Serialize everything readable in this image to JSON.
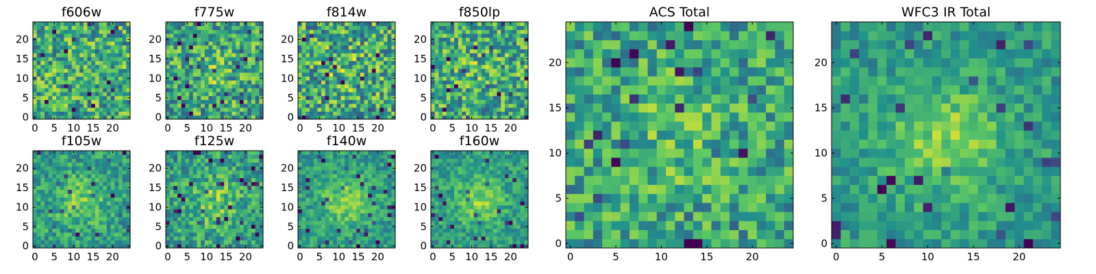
{
  "chart_data": [
    {
      "id": "p1",
      "type": "heatmap",
      "title": "f606w",
      "grid_size": 25,
      "xlim": [
        0,
        25
      ],
      "ylim": [
        0,
        25
      ],
      "xticks": [
        0,
        5,
        10,
        15,
        20
      ],
      "yticks": [
        0,
        5,
        10,
        15,
        20
      ],
      "blob": 0.0,
      "seed": 11,
      "noise": 0.55
    },
    {
      "id": "p2",
      "type": "heatmap",
      "title": "f775w",
      "grid_size": 25,
      "xlim": [
        0,
        25
      ],
      "ylim": [
        0,
        25
      ],
      "xticks": [
        0,
        5,
        10,
        15,
        20
      ],
      "yticks": [
        0,
        5,
        10,
        15,
        20
      ],
      "blob": 0.25,
      "seed": 23,
      "noise": 0.55
    },
    {
      "id": "p3",
      "type": "heatmap",
      "title": "f814w",
      "grid_size": 25,
      "xlim": [
        0,
        25
      ],
      "ylim": [
        0,
        25
      ],
      "xticks": [
        0,
        5,
        10,
        15,
        20
      ],
      "yticks": [
        0,
        5,
        10,
        15,
        20
      ],
      "blob": 0.2,
      "seed": 37,
      "noise": 0.6
    },
    {
      "id": "p4",
      "type": "heatmap",
      "title": "f850lp",
      "grid_size": 25,
      "xlim": [
        0,
        25
      ],
      "ylim": [
        0,
        25
      ],
      "xticks": [
        0,
        5,
        10,
        15,
        20
      ],
      "yticks": [
        0,
        5,
        10,
        15,
        20
      ],
      "blob": 0.15,
      "seed": 41,
      "noise": 0.55
    },
    {
      "id": "p5",
      "type": "heatmap",
      "title": "f105w",
      "grid_size": 25,
      "xlim": [
        0,
        25
      ],
      "ylim": [
        0,
        25
      ],
      "xticks": [
        0,
        5,
        10,
        15,
        20
      ],
      "yticks": [
        0,
        5,
        10,
        15,
        20
      ],
      "blob": 0.55,
      "seed": 53,
      "noise": 0.35
    },
    {
      "id": "p6",
      "type": "heatmap",
      "title": "f125w",
      "grid_size": 25,
      "xlim": [
        0,
        25
      ],
      "ylim": [
        0,
        25
      ],
      "xticks": [
        0,
        5,
        10,
        15,
        20
      ],
      "yticks": [
        0,
        5,
        10,
        15,
        20
      ],
      "blob": 0.5,
      "seed": 67,
      "noise": 0.4
    },
    {
      "id": "p7",
      "type": "heatmap",
      "title": "f140w",
      "grid_size": 25,
      "xlim": [
        0,
        25
      ],
      "ylim": [
        0,
        25
      ],
      "xticks": [
        0,
        5,
        10,
        15,
        20
      ],
      "yticks": [
        0,
        5,
        10,
        15,
        20
      ],
      "blob": 0.65,
      "seed": 71,
      "noise": 0.3
    },
    {
      "id": "p8",
      "type": "heatmap",
      "title": "f160w",
      "grid_size": 25,
      "xlim": [
        0,
        25
      ],
      "ylim": [
        0,
        25
      ],
      "xticks": [
        0,
        5,
        10,
        15,
        20
      ],
      "yticks": [
        0,
        5,
        10,
        15,
        20
      ],
      "blob": 0.65,
      "seed": 83,
      "noise": 0.3
    },
    {
      "id": "p9",
      "type": "heatmap",
      "title": "ACS Total",
      "grid_size": 25,
      "xlim": [
        0,
        25
      ],
      "ylim": [
        0,
        25
      ],
      "xticks": [
        0,
        5,
        10,
        15,
        20
      ],
      "yticks": [
        0,
        5,
        10,
        15,
        20
      ],
      "blob": 0.3,
      "seed": 97,
      "noise": 0.45
    },
    {
      "id": "p10",
      "type": "heatmap",
      "title": "WFC3 IR Total",
      "grid_size": 25,
      "xlim": [
        0,
        25
      ],
      "ylim": [
        0,
        25
      ],
      "xticks": [
        0,
        5,
        10,
        15,
        20
      ],
      "yticks": [
        0,
        5,
        10,
        15,
        20
      ],
      "blob": 0.7,
      "seed": 101,
      "noise": 0.28
    }
  ],
  "colormap": [
    "#440154",
    "#3b528b",
    "#21918c",
    "#5ec962",
    "#fde725"
  ]
}
